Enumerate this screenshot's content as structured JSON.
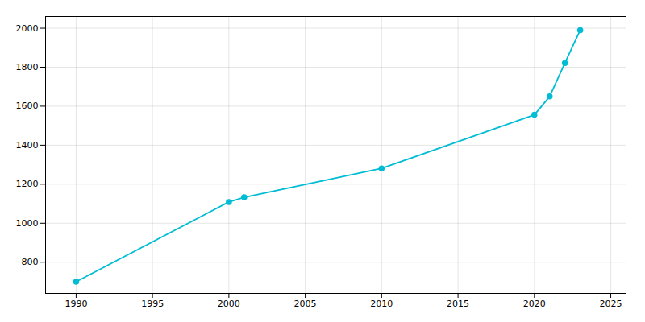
{
  "chart_data": {
    "type": "line",
    "x": [
      1990,
      2000,
      2001,
      2010,
      2020,
      2021,
      2022,
      2023
    ],
    "values": [
      700,
      1109,
      1133,
      1281,
      1556,
      1650,
      1822,
      1990
    ],
    "color": "#00BCD4",
    "marker": "circle",
    "line_style": "solid",
    "xlim": [
      1988,
      2026
    ],
    "ylim": [
      640,
      2060
    ],
    "xticks": [
      1990,
      1995,
      2000,
      2005,
      2010,
      2015,
      2020,
      2025
    ],
    "yticks": [
      800,
      1000,
      1200,
      1400,
      1600,
      1800,
      2000
    ],
    "grid": true
  }
}
